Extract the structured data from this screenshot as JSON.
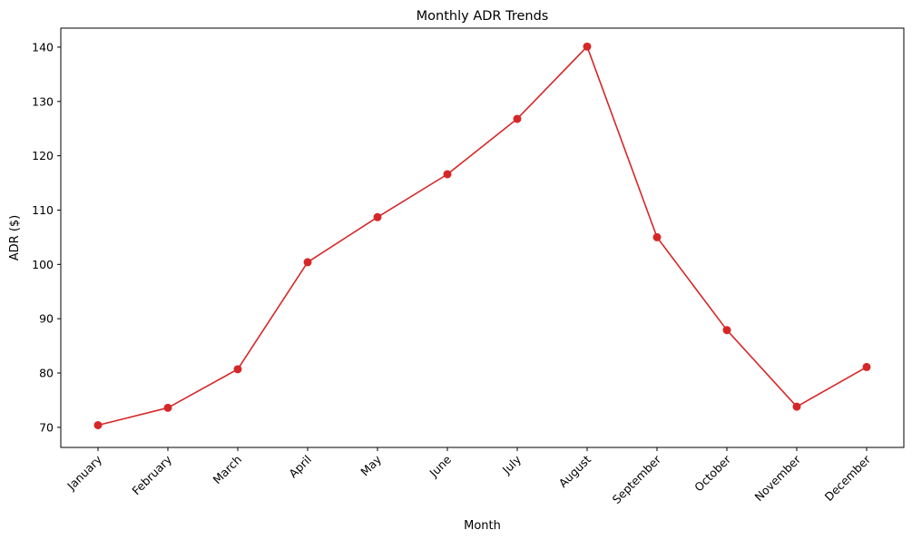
{
  "chart_data": {
    "type": "line",
    "title": "Monthly ADR Trends",
    "xlabel": "Month",
    "ylabel": "ADR ($)",
    "categories": [
      "January",
      "February",
      "March",
      "April",
      "May",
      "June",
      "July",
      "August",
      "September",
      "October",
      "November",
      "December"
    ],
    "series": [
      {
        "values": [
          70.4,
          73.6,
          80.7,
          100.4,
          108.7,
          116.6,
          126.8,
          140.1,
          105.0,
          87.9,
          73.8,
          81.1
        ],
        "color": "#d62728",
        "marker": "circle"
      }
    ],
    "ylim": [
      66.3,
      143.5
    ],
    "yticks": [
      70,
      80,
      90,
      100,
      110,
      120,
      130,
      140
    ],
    "xtick_rotation": 45,
    "grid": false,
    "legend": "none"
  }
}
